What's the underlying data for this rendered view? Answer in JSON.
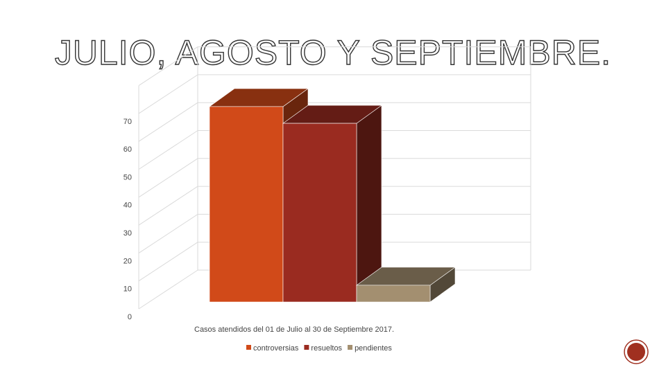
{
  "chart_data": {
    "type": "bar3d",
    "title": "JULIO, AGOSTO Y SEPTIEMBRE.",
    "categories": [
      "Casos atendidos del 01 de Julio al 30 de Septiembre 2017."
    ],
    "series": [
      {
        "name": "controversias",
        "color": "#d14a19",
        "values": [
          70
        ]
      },
      {
        "name": "resueltos",
        "color": "#9a2b20",
        "values": [
          64
        ]
      },
      {
        "name": "pendientes",
        "color": "#a38f70",
        "values": [
          6
        ]
      }
    ],
    "ylim": [
      0,
      80
    ],
    "yticks": [
      0,
      10,
      20,
      30,
      40,
      50,
      60,
      70
    ],
    "grid": true,
    "legend": "bottom"
  }
}
